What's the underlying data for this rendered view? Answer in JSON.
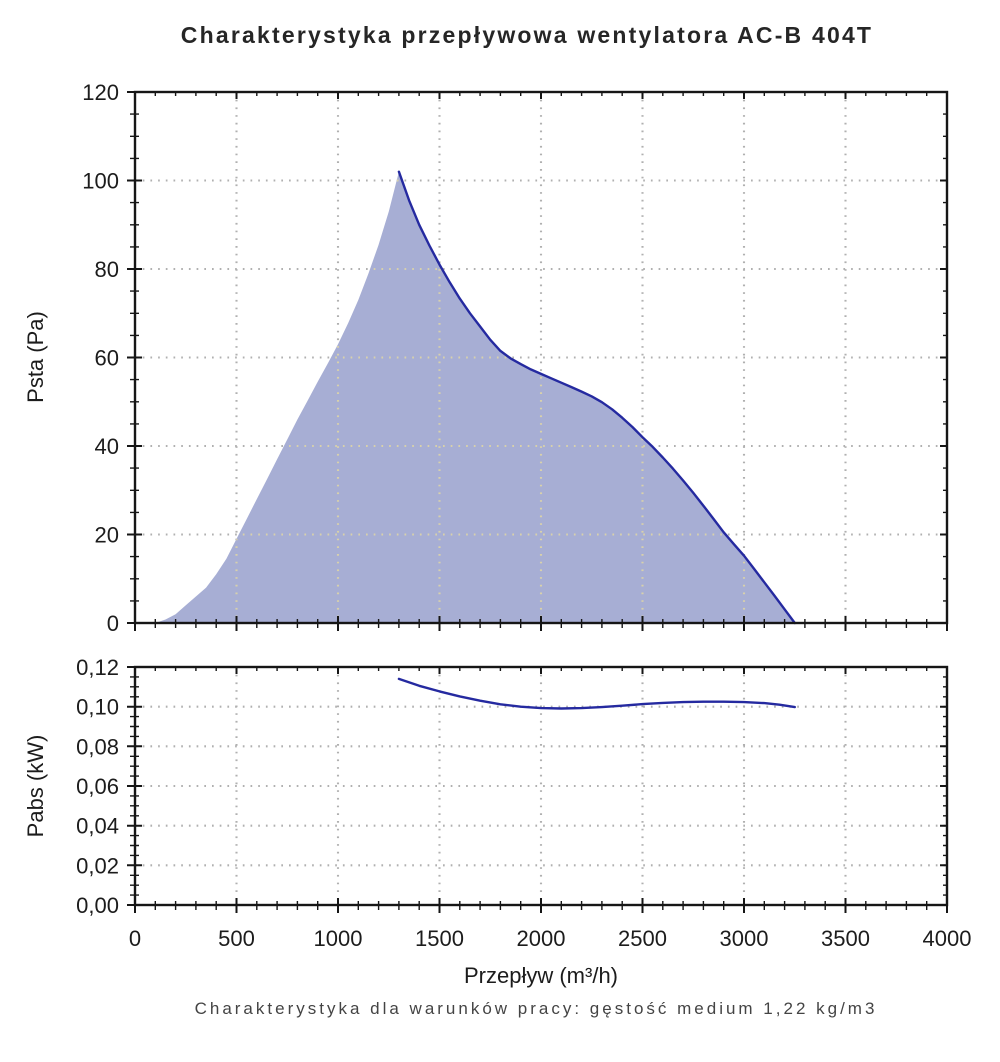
{
  "page": {
    "title": "Charakterystyka przepływowa wentylatora AC-B 404T",
    "subtitle": "Charakterystyka dla warunków pracy: gęstość medium 1,22 kg/m3"
  },
  "colors": {
    "curve": "#252aa0",
    "fill": "#a7aed4",
    "grid": "#b0b0b0",
    "grid_on_fill": "#d8d1ab",
    "axis": "#161616",
    "tick_label": "#1c1c1c",
    "subtitle_text": "#444444"
  },
  "x_axis": {
    "label": "Przepływ (m³/h)",
    "lim": [
      0,
      4000
    ],
    "major_step": 500,
    "minor_step": 100,
    "tick_labels": [
      "0",
      "500",
      "1000",
      "1500",
      "2000",
      "2500",
      "3000",
      "3500",
      "4000"
    ]
  },
  "chart_data": [
    {
      "type": "area",
      "name": "psta",
      "ylabel": "Psta (Pa)",
      "ylim": [
        0,
        120
      ],
      "y_major": 20,
      "y_minor": 5,
      "y_tick_labels": [
        "0",
        "20",
        "40",
        "60",
        "80",
        "100",
        "120"
      ],
      "grid": "dotted",
      "series": [
        {
          "name": "fill-rise-boundary",
          "role": "fill_boundary",
          "points": [
            [
              100,
              0
            ],
            [
              150,
              0.8
            ],
            [
              200,
              2
            ],
            [
              250,
              4
            ],
            [
              300,
              6
            ],
            [
              350,
              8
            ],
            [
              400,
              11
            ],
            [
              450,
              14.5
            ],
            [
              500,
              19
            ],
            [
              550,
              23.5
            ],
            [
              600,
              28
            ],
            [
              650,
              32.5
            ],
            [
              700,
              37
            ],
            [
              750,
              41.5
            ],
            [
              800,
              46
            ],
            [
              850,
              50.2
            ],
            [
              900,
              54.5
            ],
            [
              950,
              58.7
            ],
            [
              1000,
              63
            ],
            [
              1050,
              67.8
            ],
            [
              1100,
              73
            ],
            [
              1150,
              79
            ],
            [
              1200,
              85.5
            ],
            [
              1250,
              93
            ],
            [
              1300,
              102
            ]
          ]
        },
        {
          "name": "fan-curve",
          "role": "line",
          "points": [
            [
              1300,
              102
            ],
            [
              1350,
              95.5
            ],
            [
              1400,
              90
            ],
            [
              1450,
              85.3
            ],
            [
              1500,
              81
            ],
            [
              1550,
              77
            ],
            [
              1600,
              73.3
            ],
            [
              1650,
              70
            ],
            [
              1700,
              67
            ],
            [
              1750,
              64
            ],
            [
              1800,
              61.5
            ],
            [
              1850,
              59.8
            ],
            [
              1900,
              58.5
            ],
            [
              1950,
              57.3
            ],
            [
              2000,
              56.3
            ],
            [
              2050,
              55.3
            ],
            [
              2100,
              54.3
            ],
            [
              2150,
              53.3
            ],
            [
              2200,
              52.3
            ],
            [
              2250,
              51.2
            ],
            [
              2300,
              49.9
            ],
            [
              2350,
              48.3
            ],
            [
              2400,
              46.4
            ],
            [
              2450,
              44.3
            ],
            [
              2500,
              42
            ],
            [
              2550,
              39.8
            ],
            [
              2600,
              37.4
            ],
            [
              2650,
              34.9
            ],
            [
              2700,
              32.2
            ],
            [
              2750,
              29.4
            ],
            [
              2800,
              26.5
            ],
            [
              2850,
              23.5
            ],
            [
              2900,
              20.5
            ],
            [
              2950,
              17.8
            ],
            [
              3000,
              15.2
            ],
            [
              3050,
              12.2
            ],
            [
              3100,
              9.2
            ],
            [
              3150,
              6.2
            ],
            [
              3200,
              3.1
            ],
            [
              3250,
              0
            ]
          ]
        }
      ]
    },
    {
      "type": "line",
      "name": "pabs",
      "ylabel": "Pabs (kW)",
      "ylim": [
        0,
        0.12
      ],
      "y_major": 0.02,
      "y_minor": 0.005,
      "y_tick_labels": [
        "0,00",
        "0,02",
        "0,04",
        "0,06",
        "0,08",
        "0,10",
        "0,12"
      ],
      "grid": "dotted",
      "series": [
        {
          "name": "power-curve",
          "role": "line",
          "points": [
            [
              1300,
              0.114
            ],
            [
              1400,
              0.1105
            ],
            [
              1500,
              0.1077
            ],
            [
              1600,
              0.1052
            ],
            [
              1700,
              0.103
            ],
            [
              1800,
              0.1012
            ],
            [
              1900,
              0.1
            ],
            [
              2000,
              0.0993
            ],
            [
              2100,
              0.0991
            ],
            [
              2200,
              0.0993
            ],
            [
              2300,
              0.0998
            ],
            [
              2400,
              0.1005
            ],
            [
              2500,
              0.1013
            ],
            [
              2600,
              0.1019
            ],
            [
              2700,
              0.1023
            ],
            [
              2800,
              0.1025
            ],
            [
              2900,
              0.1025
            ],
            [
              3000,
              0.1023
            ],
            [
              3100,
              0.1018
            ],
            [
              3175,
              0.101
            ],
            [
              3250,
              0.0998
            ]
          ]
        }
      ]
    }
  ]
}
